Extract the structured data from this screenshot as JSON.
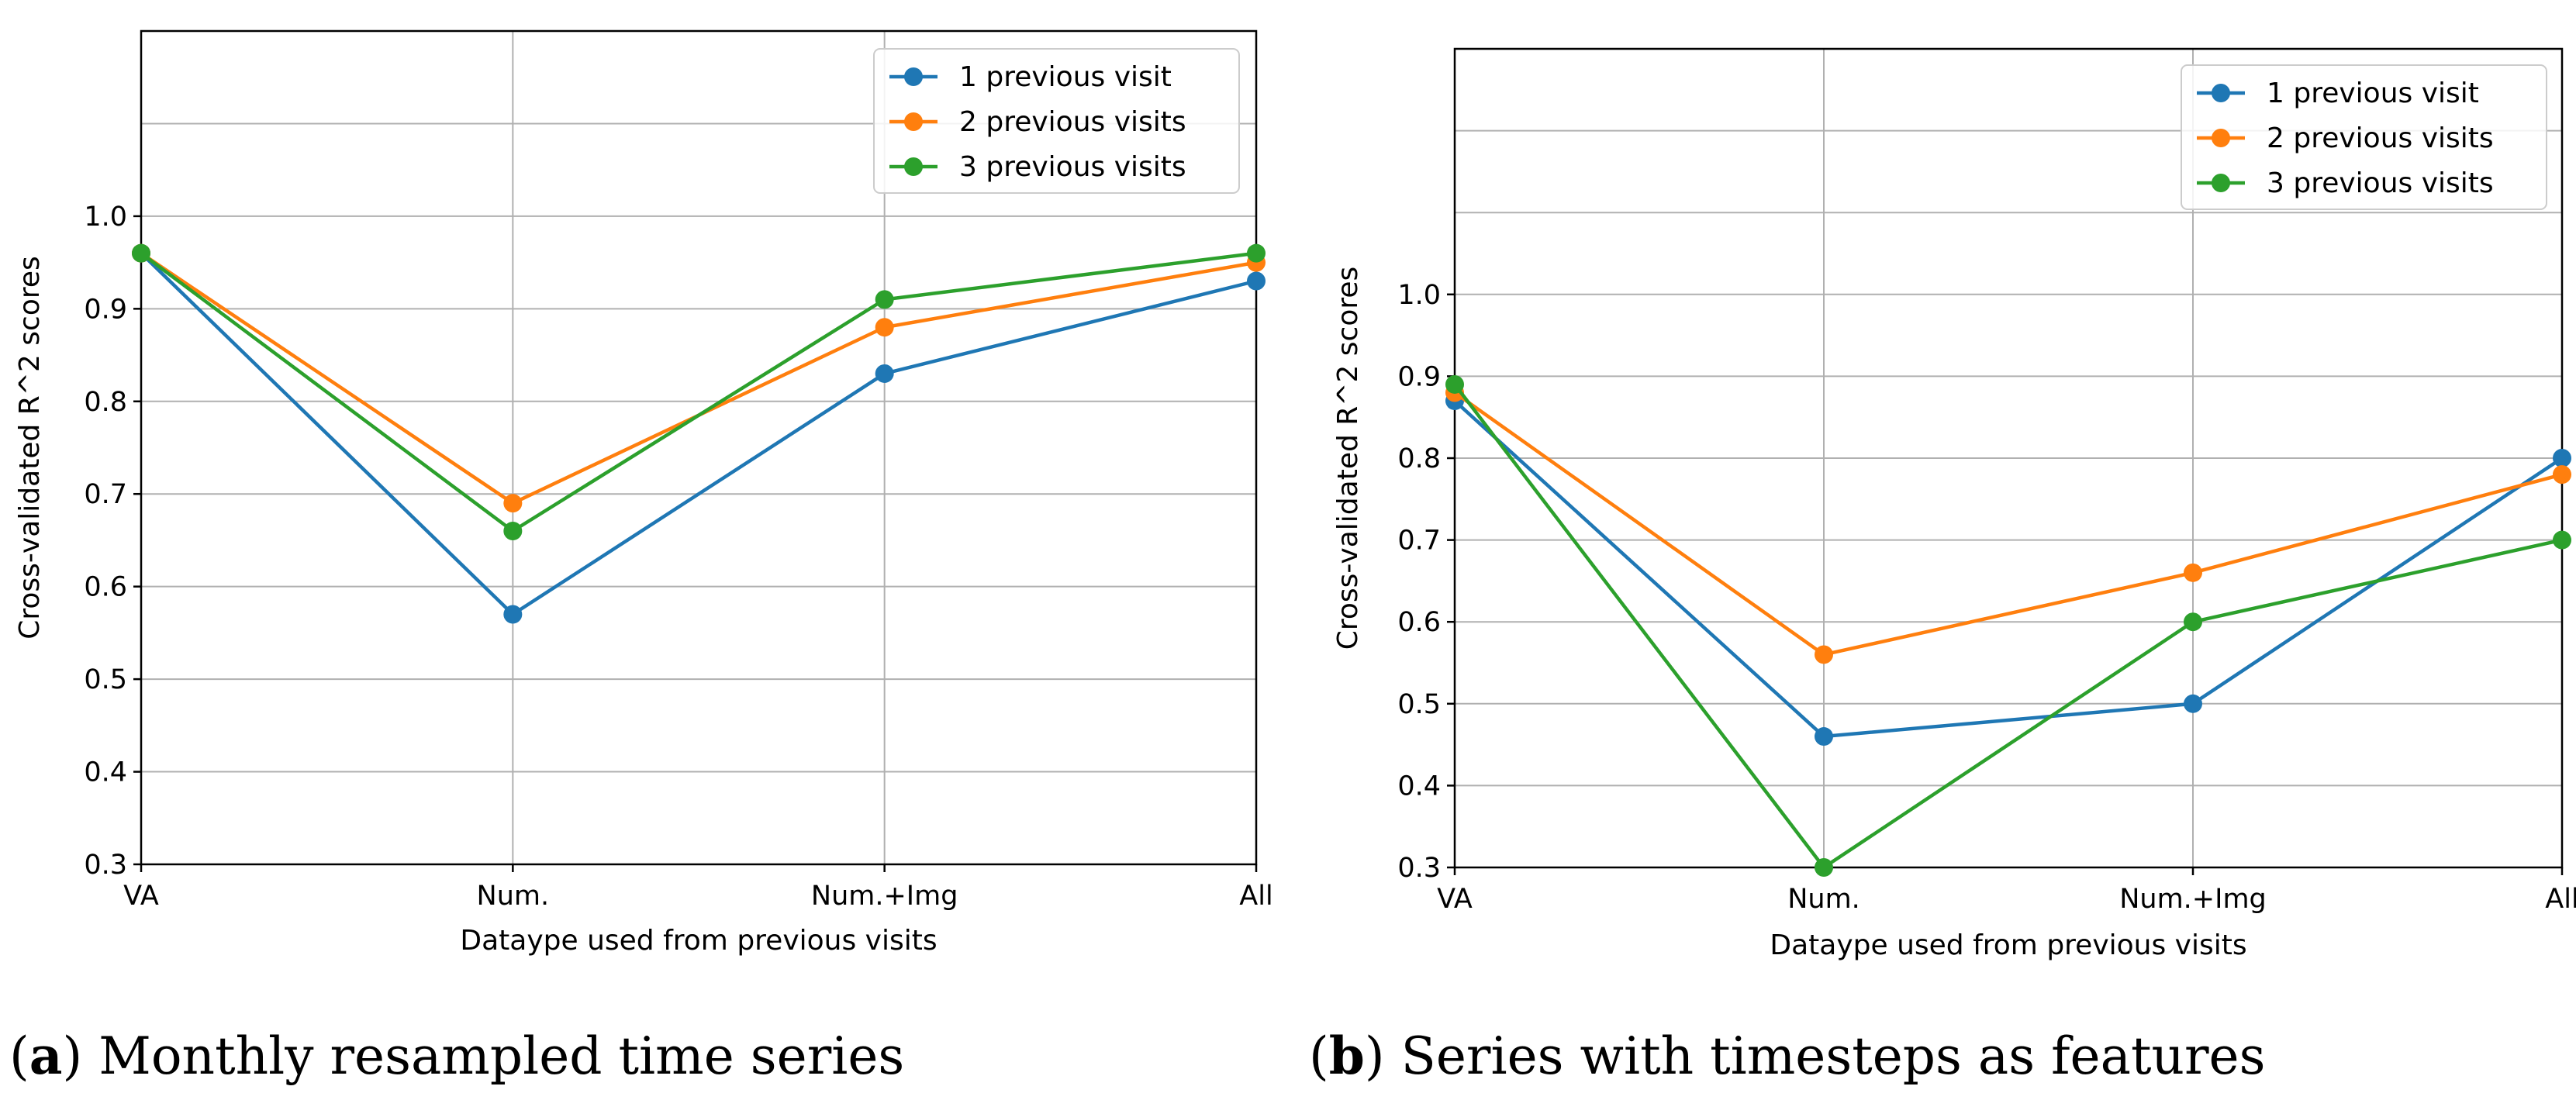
{
  "chart_data": [
    {
      "type": "line",
      "panel": "a",
      "caption_label": "(a)",
      "caption_text": "Monthly resampled time series",
      "xlabel": "Dataype used from previous visits",
      "ylabel": "Cross-validated R^2 scores",
      "categories": [
        "VA",
        "Num.",
        "Num.+Img",
        "All"
      ],
      "ylim": [
        0.3,
        1.2
      ],
      "yticks": [
        0.3,
        0.4,
        0.5,
        0.6,
        0.7,
        0.8,
        0.9,
        1.0
      ],
      "ytick_labels": [
        "0.3",
        "0.4",
        "0.5",
        "0.6",
        "0.7",
        "0.8",
        "0.9",
        "1.0"
      ],
      "grid": true,
      "legend_position": "top-right",
      "series": [
        {
          "name": "1 previous visit",
          "color": "#1f77b4",
          "values": [
            0.96,
            0.57,
            0.83,
            0.93
          ]
        },
        {
          "name": "2 previous visits",
          "color": "#ff7f0e",
          "values": [
            0.96,
            0.69,
            0.88,
            0.95
          ]
        },
        {
          "name": "3 previous visits",
          "color": "#2ca02c",
          "values": [
            0.96,
            0.66,
            0.91,
            0.96
          ]
        }
      ]
    },
    {
      "type": "line",
      "panel": "b",
      "caption_label": "(b)",
      "caption_text": "Series with timesteps as features",
      "xlabel": "Dataype used from previous visits",
      "ylabel": "Cross-validated R^2 scores",
      "categories": [
        "VA",
        "Num.",
        "Num.+Img",
        "All"
      ],
      "ylim": [
        0.3,
        1.3
      ],
      "yticks": [
        0.3,
        0.4,
        0.5,
        0.6,
        0.7,
        0.8,
        0.9,
        1.0
      ],
      "ytick_labels": [
        "0.3",
        "0.4",
        "0.5",
        "0.6",
        "0.7",
        "0.8",
        "0.9",
        "1.0"
      ],
      "grid": true,
      "legend_position": "top-right",
      "series": [
        {
          "name": "1 previous visit",
          "color": "#1f77b4",
          "values": [
            0.87,
            0.46,
            0.5,
            0.8
          ]
        },
        {
          "name": "2 previous visits",
          "color": "#ff7f0e",
          "values": [
            0.88,
            0.56,
            0.66,
            0.78
          ]
        },
        {
          "name": "3 previous visits",
          "color": "#2ca02c",
          "values": [
            0.89,
            0.3,
            0.6,
            0.7
          ]
        }
      ]
    }
  ]
}
